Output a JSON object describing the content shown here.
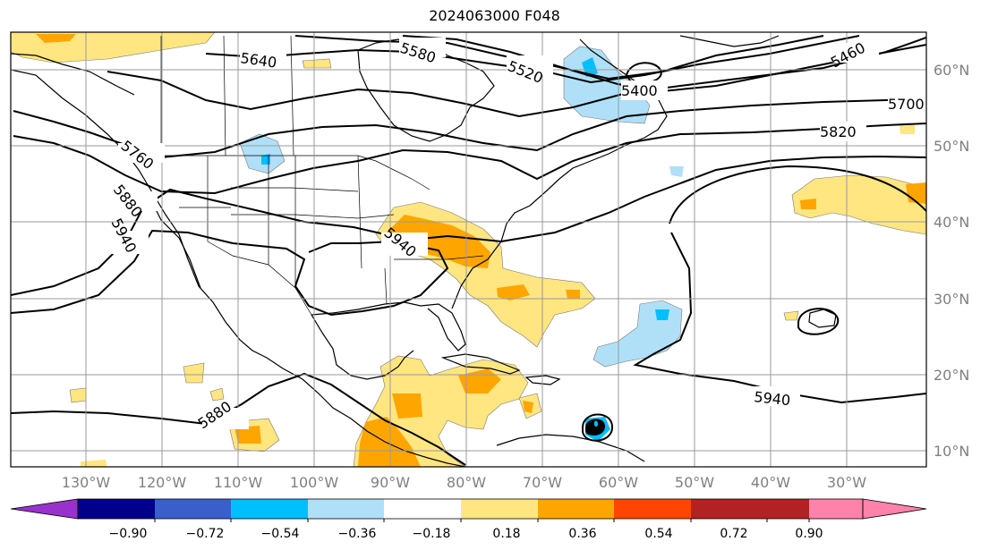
{
  "title": "2024063000 F048",
  "lon_labels": [
    "130°W",
    "120°W",
    "110°W",
    "100°W",
    "90°W",
    "80°W",
    "70°W",
    "60°W",
    "50°W",
    "40°W",
    "30°W"
  ],
  "lat_labels": [
    "60°N",
    "50°N",
    "40°N",
    "30°N",
    "20°N",
    "10°N"
  ],
  "contour_labels": {
    "c5640": "5640",
    "c5580": "5580",
    "c5520": "5520",
    "c5460": "5460",
    "c5400": "5400",
    "c5700": "5700",
    "c5820": "5820",
    "c5760": "5760",
    "c5880a": "5880",
    "c5940a": "5940",
    "c5940b": "5940",
    "c5940c": "5940",
    "c5880b": "5880"
  },
  "colorbar": {
    "ticks": [
      "−0.90",
      "−0.72",
      "−0.54",
      "−0.36",
      "−0.18",
      "0.18",
      "0.36",
      "0.54",
      "0.72",
      "0.90"
    ],
    "colors": {
      "under": "#9932cc",
      "b1": "#00008b",
      "b2": "#3a5fcd",
      "b3": "#00bfff",
      "b4": "#b0e0f8",
      "b5": "#ffffff",
      "b6": "#ffe680",
      "b7": "#ffa500",
      "b8": "#ff4500",
      "b9": "#b22222",
      "over": "#ff82ab"
    }
  }
}
